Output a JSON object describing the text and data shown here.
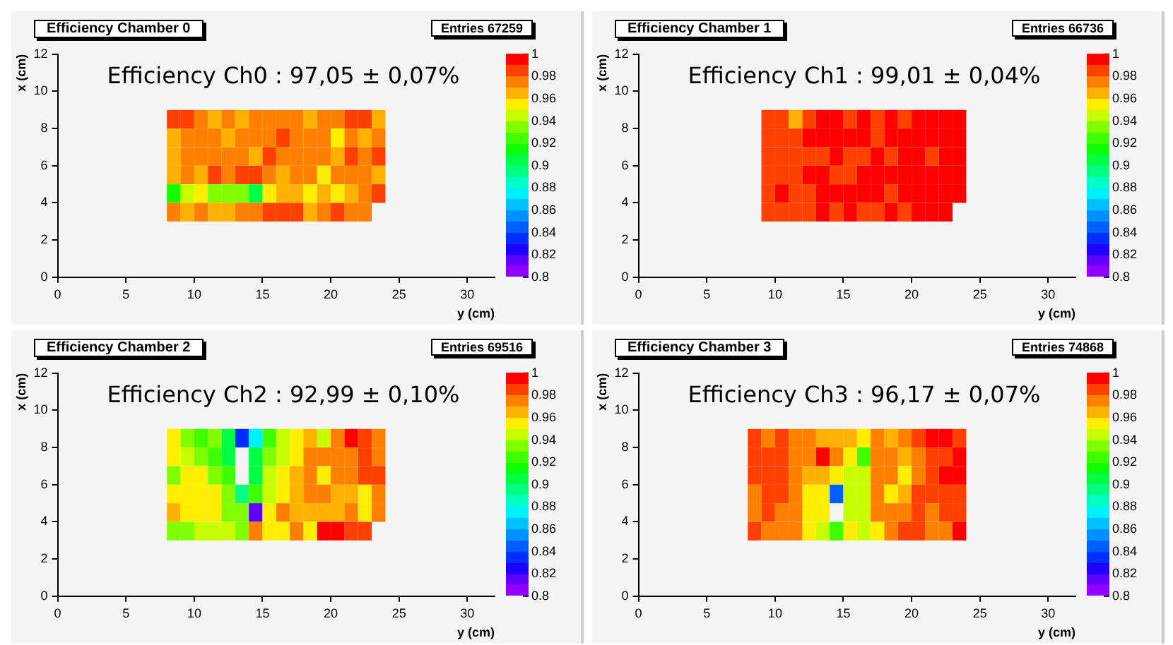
{
  "chart_data": [
    {
      "type": "heatmap",
      "title": "Efficiency Chamber 0",
      "xlabel": "y (cm)",
      "ylabel": "x (cm)",
      "annotations": [
        "Entries 67259",
        "Efficiency Ch0 : 97,05 ± 0,07%"
      ],
      "x": [
        8.5,
        9.5,
        10.5,
        11.5,
        12.5,
        13.5,
        14.5,
        15.5,
        16.5,
        17.5,
        18.5,
        19.5,
        20.5,
        21.5,
        22.5,
        23.5
      ],
      "y": [
        8.5,
        7.5,
        6.5,
        5.5,
        4.5,
        3.5
      ],
      "xlim": [
        0,
        32
      ],
      "xticks": [
        0,
        5,
        10,
        15,
        20,
        25,
        30
      ],
      "ylim": [
        0,
        12
      ],
      "yticks": [
        0,
        2,
        4,
        6,
        8,
        10,
        12
      ],
      "clim": [
        0.8,
        1
      ],
      "cticks": [
        0.8,
        0.82,
        0.84,
        0.86,
        0.88,
        0.9,
        0.92,
        0.94,
        0.96,
        0.98,
        1
      ],
      "cells": [
        [
          0.985,
          0.985,
          0.975,
          0.965,
          0.975,
          0.965,
          0.975,
          0.975,
          0.975,
          0.975,
          0.965,
          0.975,
          0.975,
          0.985,
          0.985,
          0.965
        ],
        [
          0.965,
          0.975,
          0.975,
          0.975,
          0.965,
          0.975,
          0.975,
          0.975,
          0.985,
          0.975,
          0.975,
          0.975,
          0.955,
          0.975,
          0.965,
          0.975
        ],
        [
          0.965,
          0.975,
          0.975,
          0.975,
          0.975,
          0.975,
          0.965,
          0.985,
          0.975,
          0.975,
          0.975,
          0.975,
          0.965,
          0.985,
          0.975,
          0.985
        ],
        [
          0.965,
          0.975,
          0.965,
          0.985,
          0.975,
          0.985,
          0.985,
          0.975,
          0.965,
          0.975,
          0.975,
          0.955,
          0.975,
          0.975,
          0.975,
          0.965
        ],
        [
          0.915,
          0.945,
          0.955,
          0.935,
          0.935,
          0.935,
          0.905,
          0.955,
          0.965,
          0.965,
          0.955,
          0.965,
          0.955,
          0.965,
          0.975,
          0.985
        ],
        [
          0.975,
          0.965,
          0.975,
          0.965,
          0.965,
          0.975,
          0.975,
          0.985,
          0.985,
          0.985,
          0.965,
          0.975,
          0.985,
          0.975,
          0.975,
          null
        ]
      ]
    },
    {
      "type": "heatmap",
      "title": "Efficiency Chamber 1",
      "xlabel": "y (cm)",
      "ylabel": "x (cm)",
      "annotations": [
        "Entries 66736",
        "Efficiency Ch1 : 99,01 ± 0,04%"
      ],
      "x": [
        8.5,
        9.5,
        10.5,
        11.5,
        12.5,
        13.5,
        14.5,
        15.5,
        16.5,
        17.5,
        18.5,
        19.5,
        20.5,
        21.5,
        22.5,
        23.5
      ],
      "y": [
        8.5,
        7.5,
        6.5,
        5.5,
        4.5,
        3.5
      ],
      "xlim": [
        0,
        32
      ],
      "xticks": [
        0,
        5,
        10,
        15,
        20,
        25,
        30
      ],
      "ylim": [
        0,
        12
      ],
      "yticks": [
        0,
        2,
        4,
        6,
        8,
        10,
        12
      ],
      "clim": [
        0.8,
        1
      ],
      "cticks": [
        0.8,
        0.82,
        0.84,
        0.86,
        0.88,
        0.9,
        0.92,
        0.94,
        0.96,
        0.98,
        1
      ],
      "cells": [
        [
          null,
          0.985,
          0.985,
          0.965,
          0.985,
          0.995,
          0.995,
          0.985,
          0.995,
          0.985,
          0.995,
          0.985,
          0.995,
          0.995,
          0.995,
          0.995
        ],
        [
          null,
          0.985,
          0.985,
          0.985,
          0.995,
          0.995,
          0.995,
          0.995,
          0.995,
          0.985,
          0.995,
          0.995,
          0.995,
          0.995,
          0.995,
          0.995
        ],
        [
          null,
          0.985,
          0.985,
          0.985,
          0.985,
          0.985,
          0.995,
          0.985,
          0.985,
          0.995,
          0.985,
          0.995,
          0.995,
          0.985,
          0.995,
          0.995
        ],
        [
          null,
          0.985,
          0.985,
          0.985,
          0.995,
          0.995,
          0.985,
          0.985,
          0.995,
          0.995,
          0.995,
          0.995,
          0.995,
          0.995,
          0.995,
          0.995
        ],
        [
          null,
          0.985,
          0.995,
          0.985,
          0.985,
          0.995,
          0.995,
          0.995,
          0.995,
          0.995,
          0.985,
          0.995,
          0.995,
          0.995,
          0.995,
          0.995
        ],
        [
          null,
          0.985,
          0.985,
          0.985,
          0.985,
          0.995,
          0.985,
          0.995,
          0.985,
          0.985,
          0.995,
          0.985,
          0.995,
          0.995,
          0.995,
          null
        ]
      ]
    },
    {
      "type": "heatmap",
      "title": "Efficiency Chamber  2",
      "xlabel": "y (cm)",
      "ylabel": "x (cm)",
      "annotations": [
        "Entries 69516",
        "Efficiency Ch2 : 92,99 ± 0,10%"
      ],
      "x": [
        8.5,
        9.5,
        10.5,
        11.5,
        12.5,
        13.5,
        14.5,
        15.5,
        16.5,
        17.5,
        18.5,
        19.5,
        20.5,
        21.5,
        22.5,
        23.5
      ],
      "y": [
        8.5,
        7.5,
        6.5,
        5.5,
        4.5,
        3.5
      ],
      "xlim": [
        0,
        32
      ],
      "xticks": [
        0,
        5,
        10,
        15,
        20,
        25,
        30
      ],
      "ylim": [
        0,
        12
      ],
      "yticks": [
        0,
        2,
        4,
        6,
        8,
        10,
        12
      ],
      "clim": [
        0.8,
        1
      ],
      "cticks": [
        0.8,
        0.82,
        0.84,
        0.86,
        0.88,
        0.9,
        0.92,
        0.94,
        0.96,
        0.98,
        1
      ],
      "cells": [
        [
          0.955,
          0.935,
          0.925,
          0.935,
          0.905,
          0.835,
          0.875,
          0.925,
          0.945,
          0.955,
          0.965,
          0.945,
          0.975,
          0.995,
          0.985,
          0.975
        ],
        [
          0.955,
          0.945,
          0.935,
          0.925,
          0.905,
          null,
          0.905,
          0.935,
          0.945,
          0.955,
          0.975,
          0.975,
          0.975,
          0.975,
          0.985,
          0.975
        ],
        [
          0.935,
          0.955,
          0.955,
          0.935,
          0.925,
          null,
          0.905,
          0.945,
          0.955,
          0.965,
          0.975,
          0.955,
          0.975,
          0.975,
          0.985,
          0.985
        ],
        [
          0.955,
          0.955,
          0.955,
          0.955,
          0.935,
          0.895,
          0.925,
          0.945,
          0.955,
          0.965,
          0.975,
          0.975,
          0.965,
          0.965,
          0.955,
          0.975
        ],
        [
          0.965,
          0.955,
          0.955,
          0.955,
          0.935,
          0.935,
          0.815,
          0.955,
          0.975,
          0.965,
          0.965,
          0.965,
          0.965,
          0.975,
          0.955,
          0.975
        ],
        [
          0.935,
          0.935,
          0.945,
          0.945,
          0.945,
          0.935,
          0.975,
          0.955,
          0.955,
          0.975,
          0.955,
          0.995,
          0.995,
          0.985,
          0.985,
          null
        ]
      ]
    },
    {
      "type": "heatmap",
      "title": "Efficiency Chamber  3",
      "xlabel": "y (cm)",
      "ylabel": "x (cm)",
      "annotations": [
        "Entries 74868",
        "Efficiency Ch3 : 96,17 ± 0,07%"
      ],
      "x": [
        8.5,
        9.5,
        10.5,
        11.5,
        12.5,
        13.5,
        14.5,
        15.5,
        16.5,
        17.5,
        18.5,
        19.5,
        20.5,
        21.5,
        22.5,
        23.5
      ],
      "y": [
        8.5,
        7.5,
        6.5,
        5.5,
        4.5,
        3.5
      ],
      "xlim": [
        0,
        32
      ],
      "xticks": [
        0,
        5,
        10,
        15,
        20,
        25,
        30
      ],
      "ylim": [
        0,
        12
      ],
      "yticks": [
        0,
        2,
        4,
        6,
        8,
        10,
        12
      ],
      "clim": [
        0.8,
        1
      ],
      "cticks": [
        0.8,
        0.82,
        0.84,
        0.86,
        0.88,
        0.9,
        0.92,
        0.94,
        0.96,
        0.98,
        1
      ],
      "cells": [
        [
          0.985,
          0.975,
          0.985,
          0.975,
          0.975,
          0.965,
          0.965,
          0.965,
          0.955,
          0.975,
          0.965,
          0.975,
          0.985,
          0.995,
          0.995,
          0.985
        ],
        [
          0.985,
          0.985,
          0.985,
          0.975,
          0.975,
          0.995,
          0.975,
          0.955,
          0.925,
          0.975,
          0.975,
          0.965,
          0.975,
          0.985,
          0.985,
          0.995
        ],
        [
          0.985,
          0.985,
          0.985,
          0.975,
          0.965,
          0.965,
          0.955,
          0.945,
          0.945,
          0.975,
          0.975,
          0.955,
          0.975,
          0.985,
          0.995,
          0.995
        ],
        [
          0.975,
          0.985,
          0.985,
          0.975,
          0.955,
          0.955,
          0.845,
          0.945,
          0.945,
          0.975,
          0.955,
          0.965,
          0.985,
          0.985,
          0.985,
          0.985
        ],
        [
          0.975,
          0.985,
          0.975,
          0.975,
          0.955,
          0.955,
          null,
          0.945,
          0.945,
          0.975,
          0.975,
          0.975,
          0.985,
          0.975,
          0.985,
          0.985
        ],
        [
          0.985,
          0.975,
          0.975,
          0.975,
          0.955,
          0.945,
          0.925,
          0.955,
          0.945,
          0.955,
          0.975,
          0.985,
          0.985,
          0.975,
          0.975,
          0.995
        ]
      ]
    }
  ]
}
